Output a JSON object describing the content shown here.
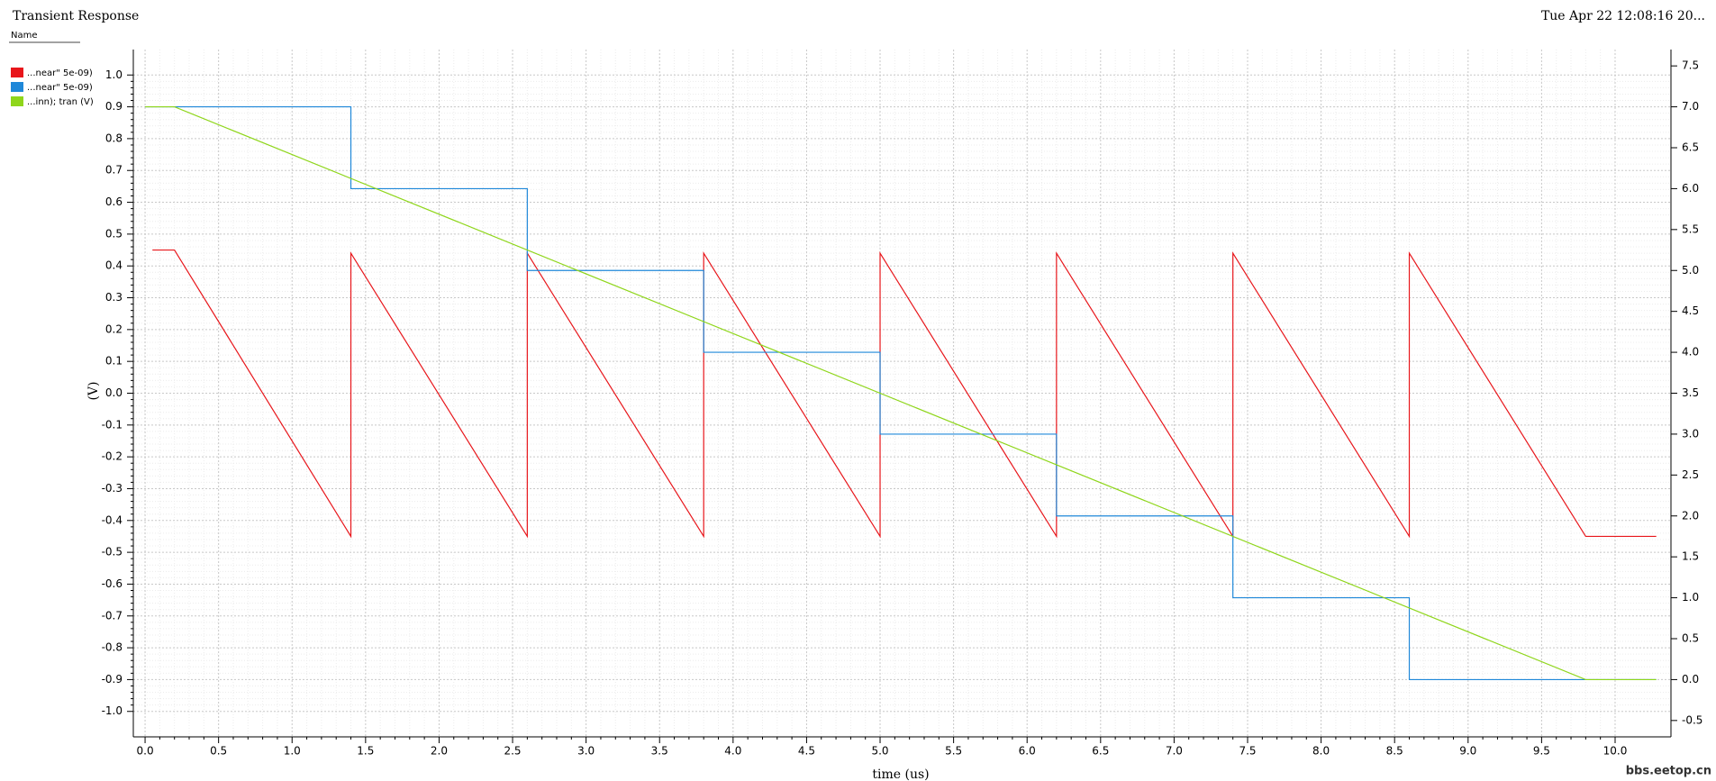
{
  "chart_data": {
    "type": "line",
    "title": "Transient Response",
    "legend_header": "Name",
    "timestamp": "Tue Apr 22 12:08:16 20...",
    "watermark": "bbs.eetop.cn",
    "xlabel": "time (us)",
    "ylabel": "(V)",
    "xlim": [
      -0.08,
      10.38
    ],
    "ylim": [
      -1.08,
      1.08
    ],
    "y2lim": [
      -0.7,
      7.7
    ],
    "grid": true,
    "xticks": [
      {
        "value": 0,
        "label": "0.0"
      },
      0.5,
      {
        "value": 1,
        "label": "1.0"
      },
      1.5,
      {
        "value": 2,
        "label": "2.0"
      },
      2.5,
      {
        "value": 3,
        "label": "3.0"
      },
      3.5,
      {
        "value": 4,
        "label": "4.0"
      },
      4.5,
      {
        "value": 5,
        "label": "5.0"
      },
      5.5,
      {
        "value": 6,
        "label": "6.0"
      },
      6.5,
      {
        "value": 7,
        "label": "7.0"
      },
      7.5,
      {
        "value": 8,
        "label": "8.0"
      },
      8.5,
      {
        "value": 9,
        "label": "9.0"
      },
      9.5,
      {
        "value": 10,
        "label": "10.0"
      }
    ],
    "yticks": [
      {
        "value": -1,
        "label": "-1.0"
      },
      -0.9,
      -0.8,
      -0.7,
      -0.6,
      -0.5,
      -0.4,
      -0.3,
      -0.2,
      -0.1,
      {
        "value": 0,
        "label": "0.0"
      },
      0.1,
      0.2,
      0.3,
      0.4,
      0.5,
      0.6,
      0.7,
      0.8,
      0.9,
      {
        "value": 1,
        "label": "1.0"
      }
    ],
    "y2ticks": [
      -0.5,
      {
        "value": 0,
        "label": "0.0"
      },
      0.5,
      {
        "value": 1,
        "label": "1.0"
      },
      1.5,
      {
        "value": 2,
        "label": "2.0"
      },
      2.5,
      {
        "value": 3,
        "label": "3.0"
      },
      3.5,
      {
        "value": 4,
        "label": "4.0"
      },
      4.5,
      {
        "value": 5,
        "label": "5.0"
      },
      5.5,
      {
        "value": 6,
        "label": "6.0"
      },
      6.5,
      {
        "value": 7,
        "label": "7.0"
      },
      7.5
    ],
    "series": [
      {
        "name": "...near\" 5e-09)",
        "color": "#e8161b",
        "axis": "y",
        "x": [
          0.05,
          0.2,
          1.4,
          1.4,
          2.6,
          2.6,
          3.8,
          3.8,
          5.0,
          5.0,
          6.2,
          6.2,
          7.4,
          7.4,
          8.6,
          8.6,
          9.8,
          10.28
        ],
        "values": [
          0.45,
          0.45,
          -0.45,
          0.44,
          -0.45,
          0.44,
          -0.45,
          0.44,
          -0.45,
          0.44,
          -0.45,
          0.44,
          -0.45,
          0.44,
          -0.45,
          0.44,
          -0.45,
          -0.45
        ]
      },
      {
        "name": "...near\" 5e-09)",
        "color": "#1f88d9",
        "axis": "y2",
        "x": [
          0,
          1.4,
          1.4,
          2.6,
          2.6,
          3.8,
          3.8,
          5.0,
          5.0,
          6.2,
          6.2,
          7.4,
          7.4,
          8.6,
          8.6,
          10.28
        ],
        "values": [
          7,
          7,
          6,
          6,
          5,
          5,
          4,
          4,
          3,
          3,
          2,
          2,
          1,
          1,
          0,
          0
        ]
      },
      {
        "name": "...inn); tran (V)",
        "color": "#8fd61b",
        "axis": "y2",
        "x": [
          0,
          0.2,
          9.8,
          10.28
        ],
        "values": [
          7,
          7,
          0,
          0
        ]
      }
    ]
  }
}
